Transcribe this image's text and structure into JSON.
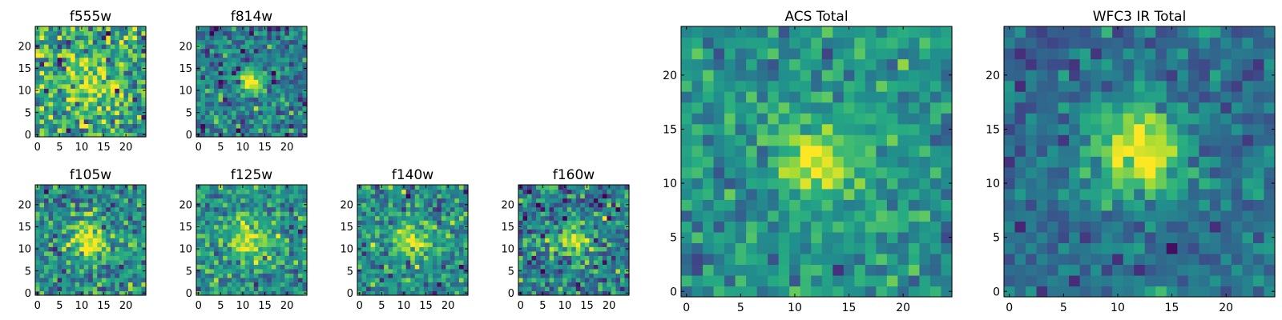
{
  "chart_data": [
    {
      "type": "heatmap",
      "title": "f555w",
      "x_ticks": [
        0,
        5,
        10,
        15,
        20
      ],
      "y_ticks": [
        0,
        5,
        10,
        15,
        20
      ],
      "xlim": [
        -0.5,
        24.5
      ],
      "ylim": [
        -0.5,
        24.5
      ],
      "grid": false,
      "grid_size": 25,
      "source_center": [
        12,
        12
      ],
      "source_sigma": 3.5,
      "source_peak": 0.35,
      "background": 0.6,
      "noise": 0.22,
      "seed": 11
    },
    {
      "type": "heatmap",
      "title": "f814w",
      "x_ticks": [
        0,
        5,
        10,
        15,
        20
      ],
      "y_ticks": [
        0,
        5,
        10,
        15,
        20
      ],
      "xlim": [
        -0.5,
        24.5
      ],
      "ylim": [
        -0.5,
        24.5
      ],
      "grid": false,
      "grid_size": 25,
      "source_center": [
        12,
        12
      ],
      "source_sigma": 1.8,
      "source_peak": 0.65,
      "background": 0.42,
      "noise": 0.16,
      "seed": 23
    },
    {
      "type": "heatmap",
      "title": "f105w",
      "x_ticks": [
        0,
        5,
        10,
        15,
        20
      ],
      "y_ticks": [
        0,
        5,
        10,
        15,
        20
      ],
      "xlim": [
        -0.5,
        24.5
      ],
      "ylim": [
        -0.5,
        24.5
      ],
      "grid": false,
      "grid_size": 25,
      "source_center": [
        12,
        12
      ],
      "source_sigma": 3.0,
      "source_peak": 0.45,
      "background": 0.5,
      "noise": 0.17,
      "seed": 37
    },
    {
      "type": "heatmap",
      "title": "f125w",
      "x_ticks": [
        0,
        5,
        10,
        15,
        20
      ],
      "y_ticks": [
        0,
        5,
        10,
        15,
        20
      ],
      "xlim": [
        -0.5,
        24.5
      ],
      "ylim": [
        -0.5,
        24.5
      ],
      "grid": false,
      "grid_size": 25,
      "source_center": [
        12,
        12
      ],
      "source_sigma": 3.0,
      "source_peak": 0.45,
      "background": 0.52,
      "noise": 0.16,
      "seed": 41
    },
    {
      "type": "heatmap",
      "title": "f140w",
      "x_ticks": [
        0,
        5,
        10,
        15,
        20
      ],
      "y_ticks": [
        0,
        5,
        10,
        15,
        20
      ],
      "xlim": [
        -0.5,
        24.5
      ],
      "ylim": [
        -0.5,
        24.5
      ],
      "grid": false,
      "grid_size": 25,
      "source_center": [
        12,
        12
      ],
      "source_sigma": 2.7,
      "source_peak": 0.45,
      "background": 0.5,
      "noise": 0.17,
      "seed": 53
    },
    {
      "type": "heatmap",
      "title": "f160w",
      "x_ticks": [
        0,
        5,
        10,
        15,
        20
      ],
      "y_ticks": [
        0,
        5,
        10,
        15,
        20
      ],
      "xlim": [
        -0.5,
        24.5
      ],
      "ylim": [
        -0.5,
        24.5
      ],
      "grid": false,
      "grid_size": 25,
      "source_center": [
        12,
        12
      ],
      "source_sigma": 2.3,
      "source_peak": 0.5,
      "background": 0.42,
      "noise": 0.18,
      "seed": 67
    },
    {
      "type": "heatmap",
      "title": "ACS Total",
      "x_ticks": [
        0,
        5,
        10,
        15,
        20
      ],
      "y_ticks": [
        0,
        5,
        10,
        15,
        20
      ],
      "xlim": [
        -0.5,
        24.5
      ],
      "ylim": [
        -0.5,
        24.5
      ],
      "grid": false,
      "grid_size": 25,
      "source_center": [
        12,
        12
      ],
      "source_sigma": 2.4,
      "source_peak": 0.5,
      "background": 0.52,
      "noise": 0.12,
      "seed": 79
    },
    {
      "type": "heatmap",
      "title": "WFC3 IR Total",
      "x_ticks": [
        0,
        5,
        10,
        15,
        20
      ],
      "y_ticks": [
        0,
        5,
        10,
        15,
        20
      ],
      "xlim": [
        -0.5,
        24.5
      ],
      "ylim": [
        -0.5,
        24.5
      ],
      "grid": false,
      "grid_size": 25,
      "source_center": [
        12,
        13
      ],
      "source_sigma": 3.2,
      "source_peak": 0.62,
      "background": 0.36,
      "noise": 0.11,
      "seed": 97
    }
  ],
  "colormap": "viridis"
}
